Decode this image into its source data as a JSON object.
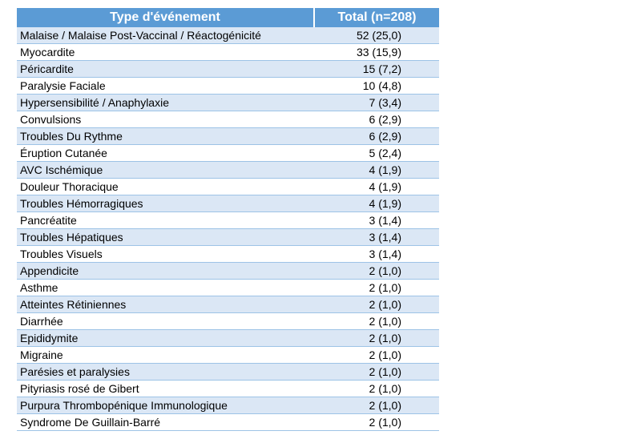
{
  "table": {
    "headers": {
      "type": "Type d'événement",
      "total": "Total (n=208)"
    },
    "rows": [
      {
        "type": "Malaise / Malaise Post-Vaccinal / Réactogénicité",
        "total": "52 (25,0)"
      },
      {
        "type": "Myocardite",
        "total": "33 (15,9)"
      },
      {
        "type": "Péricardite",
        "total": "15 (7,2)"
      },
      {
        "type": "Paralysie Faciale",
        "total": "10 (4,8)"
      },
      {
        "type": "Hypersensibilité / Anaphylaxie",
        "total": "7 (3,4)"
      },
      {
        "type": "Convulsions",
        "total": "6 (2,9)"
      },
      {
        "type": "Troubles Du Rythme",
        "total": "6 (2,9)"
      },
      {
        "type": "Éruption Cutanée",
        "total": "5 (2,4)"
      },
      {
        "type": "AVC Ischémique",
        "total": "4 (1,9)"
      },
      {
        "type": "Douleur Thoracique",
        "total": "4 (1,9)"
      },
      {
        "type": "Troubles Hémorragiques",
        "total": "4 (1,9)"
      },
      {
        "type": "Pancréatite",
        "total": "3 (1,4)"
      },
      {
        "type": "Troubles Hépatiques",
        "total": "3 (1,4)"
      },
      {
        "type": "Troubles Visuels",
        "total": "3 (1,4)"
      },
      {
        "type": "Appendicite",
        "total": "2 (1,0)"
      },
      {
        "type": "Asthme",
        "total": "2 (1,0)"
      },
      {
        "type": "Atteintes Rétiniennes",
        "total": "2 (1,0)"
      },
      {
        "type": "Diarrhée",
        "total": "2 (1,0)"
      },
      {
        "type": "Epididymite",
        "total": "2 (1,0)"
      },
      {
        "type": "Migraine",
        "total": "2 (1,0)"
      },
      {
        "type": "Parésies et paralysies",
        "total": "2 (1,0)"
      },
      {
        "type": "Pityriasis rosé de Gibert",
        "total": "2 (1,0)"
      },
      {
        "type": "Purpura Thrombopénique Immunologique",
        "total": "2 (1,0)"
      },
      {
        "type": "Syndrome De Guillain-Barré",
        "total": "2 (1,0)"
      }
    ]
  },
  "colors": {
    "header_bg": "#5b9bd5",
    "header_text": "#ffffff",
    "row_shade": "#dbe7f5",
    "row_divider": "#9dc3e6"
  }
}
